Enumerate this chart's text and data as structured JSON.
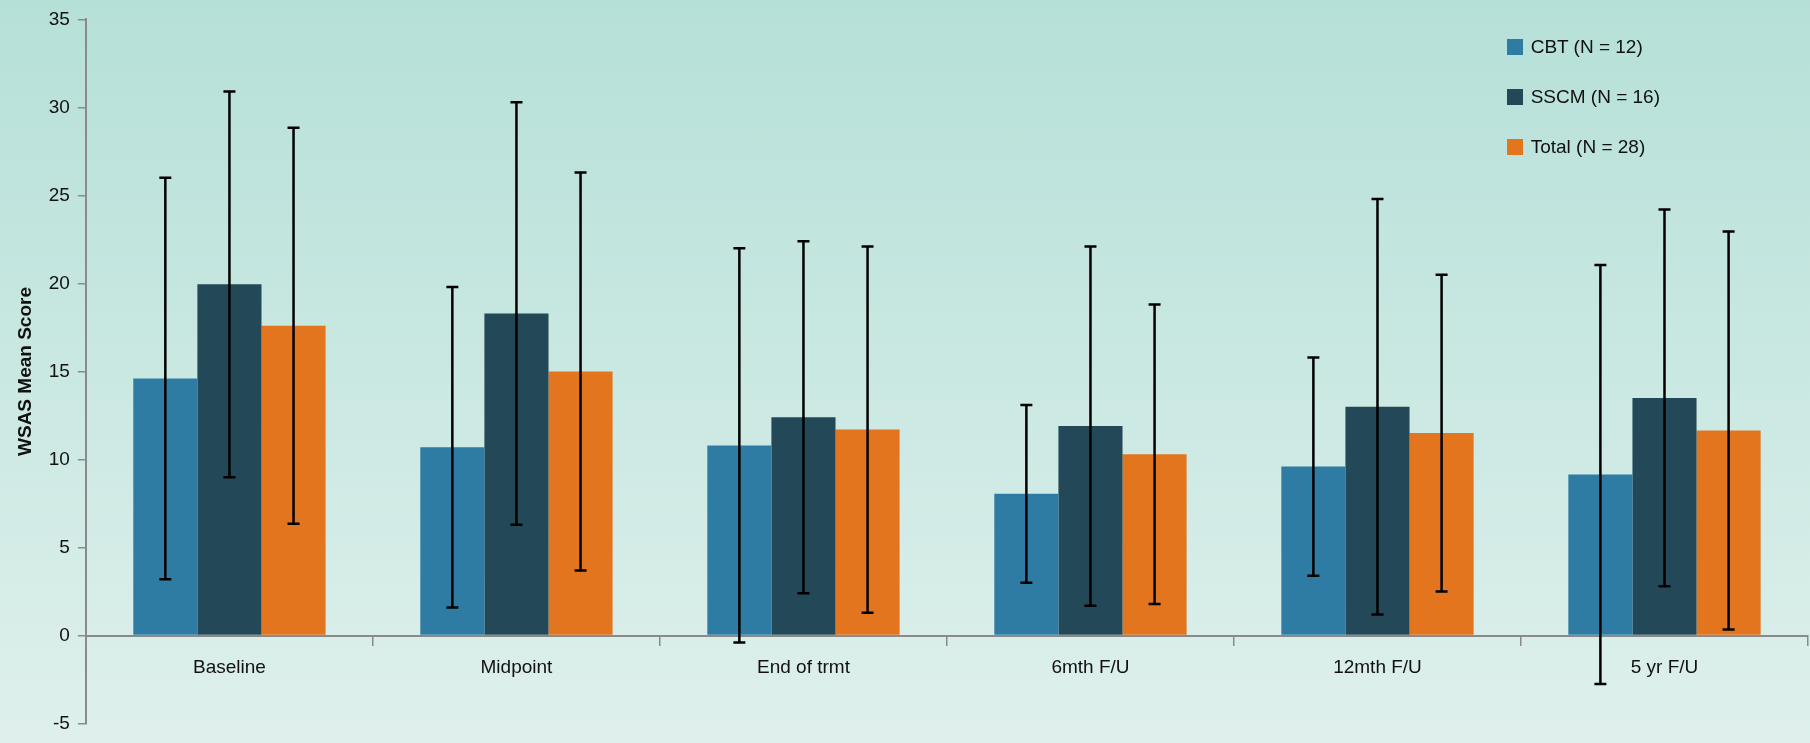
{
  "chart_data": {
    "type": "bar",
    "ylabel": "WSAS Mean Score",
    "categories": [
      "Baseline",
      "Midpoint",
      "End of trmt",
      "6mth F/U",
      "12mth F/U",
      "5 yr F/U"
    ],
    "series": [
      {
        "name": "CBT (N = 12)",
        "color": "#2e7ca3",
        "values": [
          14.6,
          10.7,
          10.8,
          8.05,
          9.6,
          9.15
        ],
        "errors": [
          11.4,
          9.1,
          11.2,
          5.05,
          6.2,
          11.9
        ]
      },
      {
        "name": "SSCM (N = 16)",
        "color": "#234858",
        "values": [
          19.95,
          18.3,
          12.4,
          11.9,
          13.0,
          13.5
        ],
        "errors": [
          10.95,
          12.0,
          10.0,
          10.2,
          11.8,
          10.7
        ]
      },
      {
        "name": "Total (N = 28)",
        "color": "#e3751f",
        "values": [
          17.6,
          15.0,
          11.7,
          10.3,
          11.5,
          11.65
        ],
        "errors": [
          11.25,
          11.3,
          10.4,
          8.5,
          9.0,
          11.3
        ]
      }
    ],
    "ylim": [
      -5,
      35
    ],
    "yticks": [
      -5,
      0,
      5,
      10,
      15,
      20,
      25,
      30,
      35
    ],
    "grid": false,
    "legend": "top right"
  }
}
